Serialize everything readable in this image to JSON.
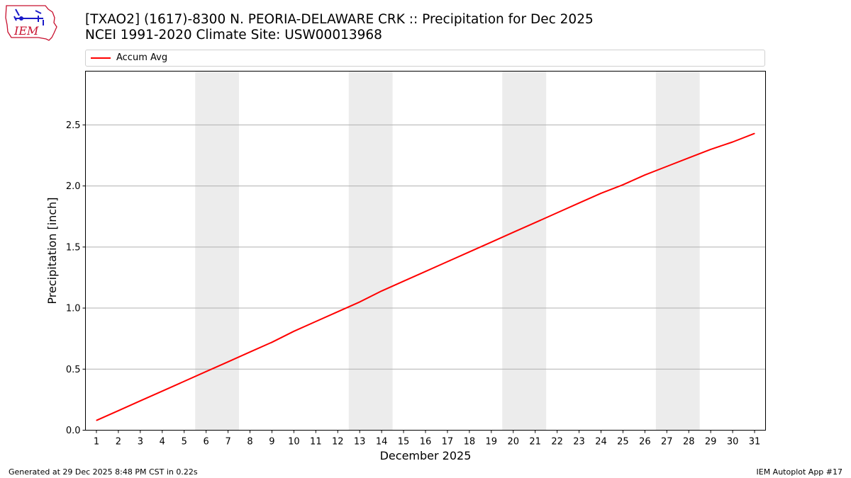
{
  "header": {
    "title_line1": "[TXAO2] (1617)-8300 N. PEORIA-DELAWARE CRK :: Precipitation for Dec 2025",
    "title_line2": "NCEI 1991-2020 Climate Site: USW00013968",
    "logo_text": "IEM"
  },
  "legend": {
    "label": "Accum Avg",
    "color": "#ff0000"
  },
  "footer": {
    "left": "Generated at 29 Dec 2025 8:48 PM CST in 0.22s",
    "right": "IEM Autoplot App #17"
  },
  "colors": {
    "line": "#ff0000",
    "weekend_band": "#ececec",
    "grid": "#b0b0b0",
    "logo": "#c8102e",
    "logo_marks": "#1a1ac8"
  },
  "chart_data": {
    "type": "line",
    "title": "[TXAO2] (1617)-8300 N. PEORIA-DELAWARE CRK :: Precipitation for Dec 2025",
    "subtitle": "NCEI 1991-2020 Climate Site: USW00013968",
    "xlabel": "December 2025",
    "ylabel": "Precipitation [inch]",
    "x": [
      1,
      2,
      3,
      4,
      5,
      6,
      7,
      8,
      9,
      10,
      11,
      12,
      13,
      14,
      15,
      16,
      17,
      18,
      19,
      20,
      21,
      22,
      23,
      24,
      25,
      26,
      27,
      28,
      29,
      30,
      31
    ],
    "xlim": [
      0.5,
      31.5
    ],
    "ylim": [
      0,
      2.94
    ],
    "yticks": [
      0.0,
      0.5,
      1.0,
      1.5,
      2.0,
      2.5
    ],
    "ytick_labels": [
      "0.0",
      "0.5",
      "1.0",
      "1.5",
      "2.0",
      "2.5"
    ],
    "grid": "horizontal",
    "legend_position": "top",
    "weekend_bands": [
      [
        6,
        7
      ],
      [
        13,
        14
      ],
      [
        20,
        21
      ],
      [
        27,
        28
      ]
    ],
    "series": [
      {
        "name": "Accum Avg",
        "color": "#ff0000",
        "values": [
          0.08,
          0.16,
          0.24,
          0.32,
          0.4,
          0.48,
          0.56,
          0.64,
          0.72,
          0.81,
          0.89,
          0.97,
          1.05,
          1.14,
          1.22,
          1.3,
          1.38,
          1.46,
          1.54,
          1.62,
          1.7,
          1.78,
          1.86,
          1.94,
          2.01,
          2.09,
          2.16,
          2.23,
          2.3,
          2.36,
          2.43
        ]
      }
    ]
  }
}
